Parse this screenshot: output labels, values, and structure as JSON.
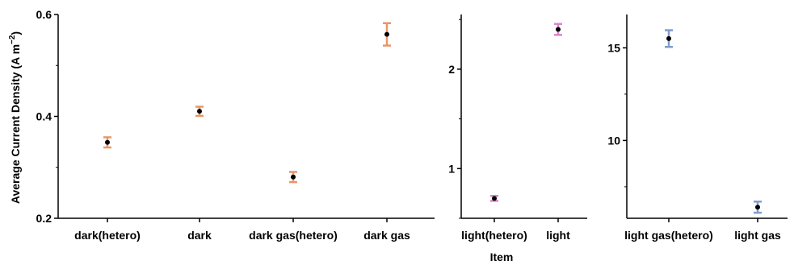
{
  "chart_data": {
    "type": "scatter",
    "xlabel": "Item",
    "ylabel_main": "Average Current Density (A m",
    "ylabel_sup": "−2",
    "ylabel_close": ")",
    "panels": [
      {
        "categories": [
          "dark(hetero)",
          "dark",
          "dark gas(hetero)",
          "dark gas"
        ],
        "values": [
          0.349,
          0.41,
          0.281,
          0.561
        ],
        "errors": [
          0.01,
          0.009,
          0.01,
          0.022
        ],
        "ylim": [
          0.2,
          0.6
        ],
        "yticks": [
          "0.2",
          "0.4",
          "0.6"
        ],
        "yticks_values": [
          0.2,
          0.4,
          0.6
        ],
        "error_color": "#e8966a"
      },
      {
        "categories": [
          "light(hetero)",
          "light"
        ],
        "values": [
          0.7,
          2.4
        ],
        "errors": [
          0.025,
          0.055
        ],
        "ylim": [
          0.5,
          2.55
        ],
        "yticks": [
          "1",
          "2"
        ],
        "yticks_values": [
          1,
          2
        ],
        "error_color": "#d887c9"
      },
      {
        "categories": [
          "light gas(hetero)",
          "light gas"
        ],
        "values": [
          15.5,
          6.4
        ],
        "errors": [
          0.45,
          0.3
        ],
        "ylim": [
          5.8,
          16.8
        ],
        "yticks": [
          "10",
          "15"
        ],
        "yticks_values": [
          10,
          15
        ],
        "error_color": "#7f9dcc"
      }
    ],
    "grid": false,
    "legend": "none"
  }
}
